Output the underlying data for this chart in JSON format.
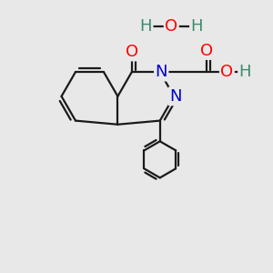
{
  "bg_color": "#e8e8e8",
  "bond_color": "#1a1a1a",
  "bond_width": 1.6,
  "atom_colors": {
    "O": "#ff0000",
    "N": "#0000cc",
    "C": "#1a1a1a",
    "H": "#3a8a6a"
  },
  "font_size": 13,
  "fig_size": [
    3.0,
    3.0
  ],
  "dpi": 100
}
